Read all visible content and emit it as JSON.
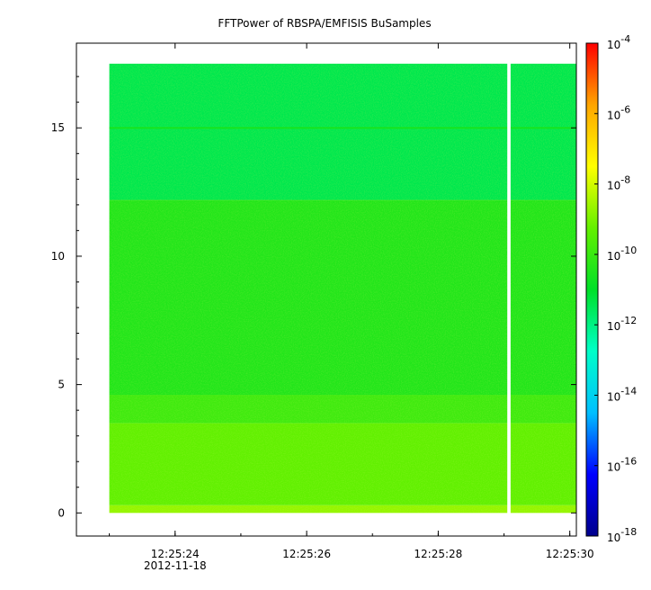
{
  "chart_data": {
    "type": "heatmap",
    "title": "FFTPower of RBSPA/EMFISIS  BuSamples",
    "xlabel": "",
    "ylabel": "",
    "x_ticks": [
      {
        "time": "12:25:24",
        "sub": "2012-11-18"
      },
      {
        "time": "12:25:26",
        "sub": ""
      },
      {
        "time": "12:25:28",
        "sub": ""
      },
      {
        "time": "12:25:30",
        "sub": ""
      }
    ],
    "x_range": [
      "12:25:22.5",
      "12:25:30.1"
    ],
    "data_time_range": [
      "12:25:23",
      "12:25:30.1"
    ],
    "data_gap": [
      "12:25:29.05",
      "12:25:29.1"
    ],
    "y_ticks": [
      0,
      5,
      10,
      15
    ],
    "ylim": [
      -0.9,
      18.3
    ],
    "data_y_range": [
      0,
      17.5
    ],
    "bands": [
      {
        "y_from": 0,
        "y_to": 0.3,
        "log_power": -8.7
      },
      {
        "y_from": 0.3,
        "y_to": 3.5,
        "log_power": -9.3
      },
      {
        "y_from": 3.5,
        "y_to": 4.6,
        "log_power": -9.9
      },
      {
        "y_from": 4.6,
        "y_to": 12.2,
        "log_power": -10.4
      },
      {
        "y_from": 12.2,
        "y_to": 17.5,
        "log_power": -11.4
      }
    ],
    "line_features": [
      {
        "y": 15,
        "log_power": -10.6
      }
    ],
    "colorbar": {
      "scale": "log",
      "range": [
        1e-18,
        0.0001
      ],
      "tick_exponents": [
        -4,
        -6,
        -8,
        -10,
        -12,
        -14,
        -16,
        -18
      ],
      "tick_base": "10",
      "colors": [
        "#00008c",
        "#0000ff",
        "#00bfff",
        "#00ffc8",
        "#00e028",
        "#64f000",
        "#ffff00",
        "#ffa500",
        "#ff0000"
      ]
    },
    "grid": false,
    "legend": "colorbar-right"
  }
}
